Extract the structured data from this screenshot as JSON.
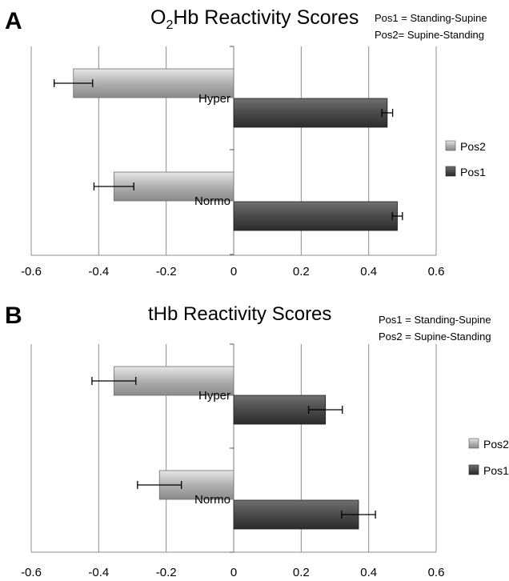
{
  "chart_data": [
    {
      "panel": "A",
      "type": "bar",
      "orientation": "horizontal",
      "title_main": "O",
      "title_sub": "2",
      "title_rest": "Hb Reactivity Scores",
      "note_lines": [
        "Pos1 = Standing-Supine",
        "Pos2= Supine-Standing"
      ],
      "categories": [
        "Hyper",
        "Normo"
      ],
      "series": [
        {
          "name": "Pos2",
          "values": [
            -0.475,
            -0.355
          ],
          "errors": [
            0.057,
            0.059
          ]
        },
        {
          "name": "Pos1",
          "values": [
            0.455,
            0.485
          ],
          "errors": [
            0.016,
            0.015
          ]
        }
      ],
      "xlim": [
        -0.6,
        0.6
      ],
      "ticks": [
        "-0.6",
        "-0.4",
        "-0.2",
        "0",
        "0.2",
        "0.4",
        "0.6"
      ],
      "grid": true,
      "legend_position": "right"
    },
    {
      "panel": "B",
      "type": "bar",
      "orientation": "horizontal",
      "title_main": "tHb Reactivity Scores",
      "title_sub": "",
      "title_rest": "",
      "note_lines": [
        "Pos1 = Standing-Supine",
        "Pos2 = Supine-Standing"
      ],
      "categories": [
        "Hyper",
        "Normo"
      ],
      "series": [
        {
          "name": "Pos2",
          "values": [
            -0.355,
            -0.22
          ],
          "errors": [
            0.065,
            0.065
          ]
        },
        {
          "name": "Pos1",
          "values": [
            0.272,
            0.37
          ],
          "errors": [
            0.05,
            0.05
          ]
        }
      ],
      "xlim": [
        -0.6,
        0.6
      ],
      "ticks": [
        "-0.6",
        "-0.4",
        "-0.2",
        "0",
        "0.2",
        "0.4",
        "0.6"
      ],
      "grid": true,
      "legend_position": "right"
    }
  ],
  "colors": {
    "pos2_light": "#d9d9d9",
    "pos2_mid": "#a8a8a8",
    "pos2_dark": "#808080",
    "pos1_light": "#6a6a6a",
    "pos1_mid": "#4a4a4a",
    "pos1_dark": "#2e2e2e",
    "grid": "#8c8c8c"
  }
}
